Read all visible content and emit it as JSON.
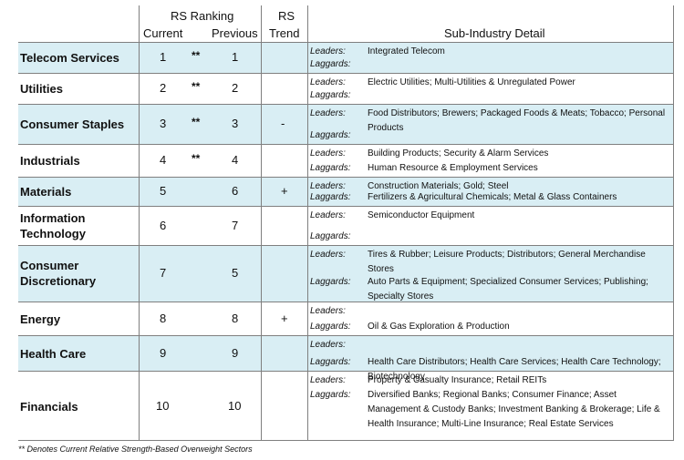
{
  "header": {
    "rs_ranking": "RS Ranking",
    "current": "Current",
    "previous": "Previous",
    "rs": "RS",
    "trend": "Trend",
    "detail": "Sub-Industry Detail"
  },
  "labels": {
    "leaders": "Leaders:",
    "laggards": "Laggards:"
  },
  "rows": [
    {
      "sector": "Telecom Services",
      "current": "1",
      "stars": "**",
      "previous": "1",
      "trend": "",
      "leaders": "Integrated Telecom",
      "laggards": "",
      "shaded": true
    },
    {
      "sector": "Utilities",
      "current": "2",
      "stars": "**",
      "previous": "2",
      "trend": "",
      "leaders": "Electric Utilities; Multi-Utilities & Unregulated Power",
      "laggards": "",
      "shaded": false
    },
    {
      "sector": "Consumer Staples",
      "current": "3",
      "stars": "**",
      "previous": "3",
      "trend": "-",
      "leaders": "Food Distributors; Brewers; Packaged Foods & Meats; Tobacco; Personal Products",
      "laggards": "",
      "shaded": true
    },
    {
      "sector": "Industrials",
      "current": "4",
      "stars": "**",
      "previous": "4",
      "trend": "",
      "leaders": "Building Products; Security & Alarm Services",
      "laggards": "Human Resource & Employment Services",
      "shaded": false
    },
    {
      "sector": "Materials",
      "current": "5",
      "stars": "",
      "previous": "6",
      "trend": "+",
      "leaders": "Construction Materials; Gold; Steel",
      "laggards": "Fertilizers & Agricultural Chemicals; Metal & Glass Containers",
      "shaded": true
    },
    {
      "sector": "Information Technology",
      "current": "6",
      "stars": "",
      "previous": "7",
      "trend": "",
      "leaders": "Semiconductor Equipment",
      "laggards": "",
      "shaded": false
    },
    {
      "sector": "Consumer Discretionary",
      "current": "7",
      "stars": "",
      "previous": "5",
      "trend": "",
      "leaders": "Tires & Rubber; Leisure Products; Distributors; General Merchandise Stores",
      "laggards": "Auto Parts & Equipment; Specialized Consumer Services; Publishing; Specialty Stores",
      "shaded": true
    },
    {
      "sector": "Energy",
      "current": "8",
      "stars": "",
      "previous": "8",
      "trend": "+",
      "leaders": "",
      "laggards": "Oil & Gas Exploration & Production",
      "shaded": false
    },
    {
      "sector": "Health Care",
      "current": "9",
      "stars": "",
      "previous": "9",
      "trend": "",
      "leaders": "",
      "laggards": "Health Care Distributors; Health Care Services; Health Care Technology; Biotechnology",
      "shaded": true
    },
    {
      "sector": "Financials",
      "current": "10",
      "stars": "",
      "previous": "10",
      "trend": "",
      "leaders": "Property & Casualty Insurance; Retail REITs",
      "laggards": "Diversified Banks; Regional Banks; Consumer Finance; Asset Management & Custody Banks; Investment Banking & Brokerage; Life & Health Insurance; Multi-Line Insurance; Real Estate Services",
      "shaded": false
    }
  ],
  "footnote": "** Denotes Current Relative Strength-Based Overweight Sectors"
}
